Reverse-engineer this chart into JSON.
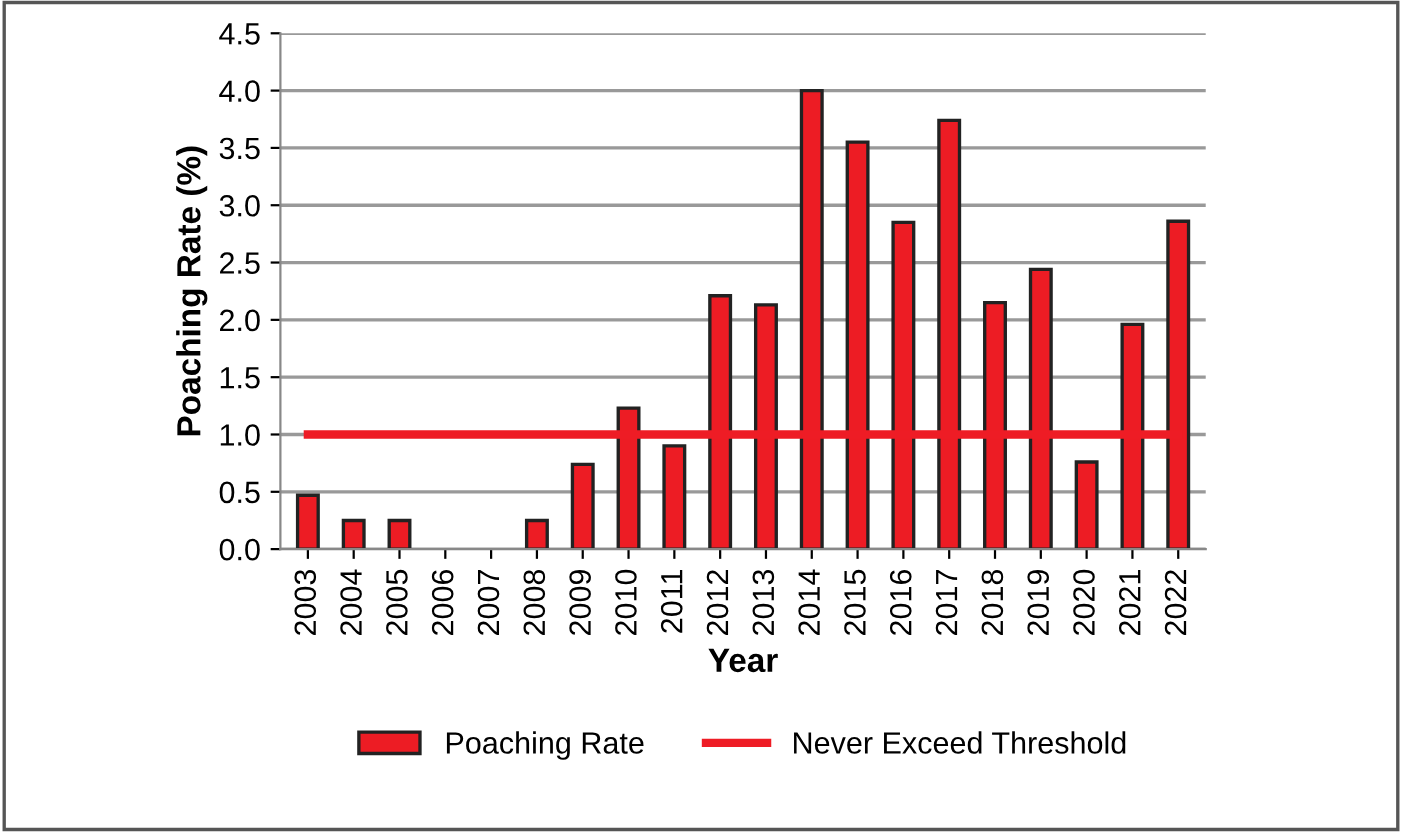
{
  "chart_data": {
    "type": "bar",
    "xlabel": "Year",
    "ylabel": "Poaching Rate (%)",
    "categories": [
      "2003",
      "2004",
      "2005",
      "2006",
      "2007",
      "2008",
      "2009",
      "2010",
      "2011",
      "2012",
      "2013",
      "2014",
      "2015",
      "2016",
      "2017",
      "2018",
      "2019",
      "2020",
      "2021",
      "2022"
    ],
    "series": [
      {
        "name": "Poaching Rate",
        "color": "#ed1c24",
        "values": [
          0.47,
          0.25,
          0.25,
          0,
          0,
          0.25,
          0.74,
          1.23,
          0.9,
          2.21,
          2.13,
          4.0,
          3.55,
          2.85,
          3.74,
          2.15,
          2.44,
          0.76,
          1.96,
          2.86
        ]
      },
      {
        "name": "Never Exceed Threshold",
        "type": "line",
        "color": "#ee1c25",
        "values": [
          1,
          1,
          1,
          1,
          1,
          1,
          1,
          1,
          1,
          1,
          1,
          1,
          1,
          1,
          1,
          1,
          1,
          1,
          1,
          1
        ]
      }
    ],
    "ylim": [
      0,
      4.5
    ],
    "yticks": [
      {
        "value": 0,
        "label": "0.0"
      },
      0.5,
      {
        "value": 1,
        "label": "1.0"
      },
      1.5,
      {
        "value": 2,
        "label": "2.0"
      },
      2.5,
      {
        "value": 3,
        "label": "3.0"
      },
      3.5,
      {
        "value": 4,
        "label": "4.0"
      },
      4.5
    ],
    "grid": "y",
    "legend": "bottom"
  }
}
